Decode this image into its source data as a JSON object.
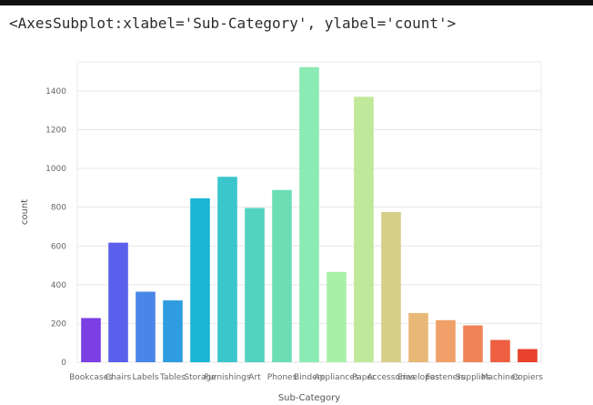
{
  "output_repr": "<AxesSubplot:xlabel='Sub-Category', ylabel='count'>",
  "chart_data": {
    "type": "bar",
    "xlabel": "Sub-Category",
    "ylabel": "count",
    "ylim": [
      0,
      1550
    ],
    "yticks": [
      0,
      200,
      400,
      600,
      800,
      1000,
      1200,
      1400
    ],
    "grid": true,
    "categories": [
      "Bookcases",
      "Chairs",
      "Labels",
      "Tables",
      "Storage",
      "Furnishings",
      "Art",
      "Phones",
      "Binders",
      "Appliances",
      "Paper",
      "Accessories",
      "Envelopes",
      "Fasteners",
      "Supplies",
      "Machines",
      "Copiers"
    ],
    "values": [
      228,
      617,
      364,
      319,
      846,
      957,
      796,
      889,
      1523,
      466,
      1370,
      775,
      254,
      217,
      190,
      115,
      68
    ],
    "colors": [
      "#7b3fe4",
      "#5a60ec",
      "#4a86e8",
      "#2f9ce0",
      "#1ab6d6",
      "#3ac6cc",
      "#52d2c0",
      "#6cddb4",
      "#8ceab4",
      "#a8f0a8",
      "#c0e89a",
      "#d6cf88",
      "#e8b878",
      "#f0a068",
      "#f08358",
      "#ee5f42",
      "#e8412c"
    ]
  }
}
